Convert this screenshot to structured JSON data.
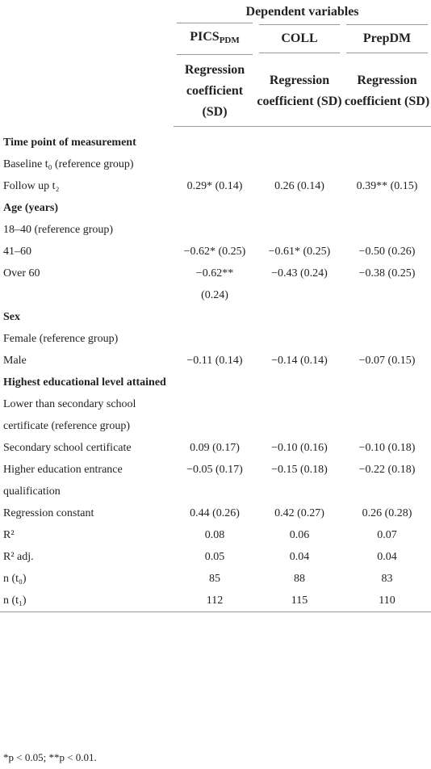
{
  "table": {
    "group_header": "Dependent variables",
    "columns": [
      {
        "name": "PICS",
        "sub": "PDM"
      },
      {
        "name": "COLL"
      },
      {
        "name": "PrepDM"
      }
    ],
    "subheader": "Regression coefficient (SD)",
    "rows": [
      {
        "label": "Time point of measurement",
        "kind": "section"
      },
      {
        "label": "Baseline t₀ (reference group)"
      },
      {
        "label": "Follow up t₂",
        "cells": [
          "0.29* (0.14)",
          "0.26 (0.14)",
          "0.39** (0.15)"
        ]
      },
      {
        "label": "Age (years)",
        "kind": "section"
      },
      {
        "label": "18–40 (reference group)"
      },
      {
        "label": "41–60",
        "cells": [
          "−0.62* (0.25)",
          "−0.61* (0.25)",
          "−0.50 (0.26)"
        ]
      },
      {
        "label": "Over 60",
        "cells": [
          "−0.62** (0.24)",
          "−0.43 (0.24)",
          "−0.38 (0.25)"
        ]
      },
      {
        "label": "Sex",
        "kind": "section"
      },
      {
        "label": "Female (reference group)"
      },
      {
        "label": "Male",
        "cells": [
          "−0.11 (0.14)",
          "−0.14 (0.14)",
          "−0.07 (0.15)"
        ]
      },
      {
        "label": "Highest educational level attained",
        "kind": "section"
      },
      {
        "label": "Lower than secondary school certificate (reference group)"
      },
      {
        "label": "Secondary school certificate",
        "cells": [
          "0.09 (0.17)",
          "−0.10 (0.16)",
          "−0.10 (0.18)"
        ]
      },
      {
        "label": "Higher education entrance qualification",
        "cells": [
          "−0.05 (0.17)",
          "−0.15 (0.18)",
          "−0.22 (0.18)"
        ]
      },
      {
        "label": "Regression constant",
        "cells": [
          "0.44 (0.26)",
          "0.42 (0.27)",
          "0.26 (0.28)"
        ]
      },
      {
        "label": "R²",
        "cells": [
          "0.08",
          "0.06",
          "0.07"
        ]
      },
      {
        "label": "R² adj.",
        "cells": [
          "0.05",
          "0.04",
          "0.04"
        ]
      },
      {
        "label": "n (t₀)",
        "cells": [
          "85",
          "88",
          "83"
        ]
      },
      {
        "label": "n (t₁)",
        "cells": [
          "112",
          "115",
          "110"
        ]
      }
    ],
    "footnote": "*p < 0.05; **p < 0.01."
  }
}
